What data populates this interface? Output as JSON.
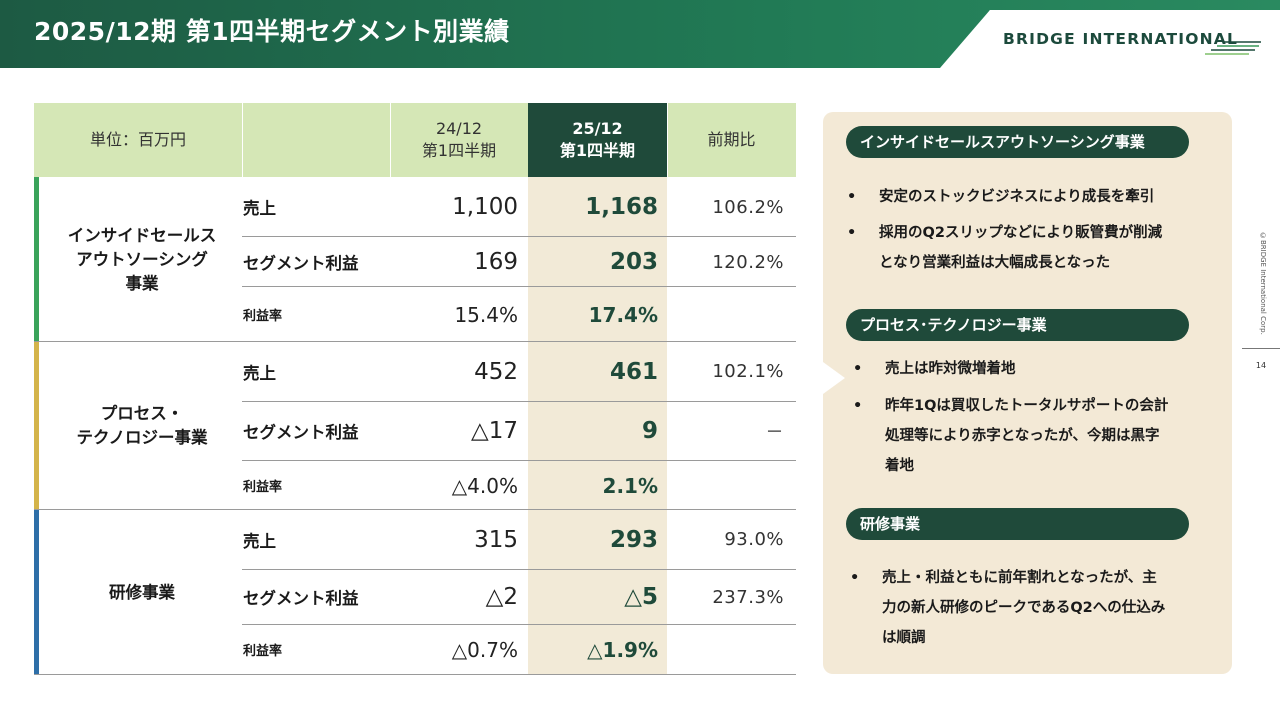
{
  "header": {
    "title": "2025/12期 第1四半期セグメント別業績",
    "logo_text": "BRIDGE INTERNATIONAL"
  },
  "colors": {
    "header_green": "#1f6b4e",
    "dark_green": "#1f4a3a",
    "header_row_bg": "#d5e7b6",
    "highlight_col_bg": "#f2ead7",
    "panel_bg": "#f3e9d6",
    "segment_insight": "#3aa35a",
    "segment_process": "#d4b44a",
    "segment_training": "#2e6fa8"
  },
  "table": {
    "unit_label": "単位：百万円",
    "col_prev": {
      "line1": "24/12",
      "line2": "第1四半期"
    },
    "col_curr": {
      "line1": "25/12",
      "line2": "第1四半期"
    },
    "col_compare": "前期比",
    "segments": [
      {
        "name_lines": [
          "インサイドセールス",
          "アウトソーシング",
          "事業"
        ],
        "rows": [
          {
            "label": "売上",
            "prev": "1,100",
            "curr": "1,168",
            "compare": "106.2%"
          },
          {
            "label": "セグメント利益",
            "prev": "169",
            "curr": "203",
            "compare": "120.2%"
          },
          {
            "label": "利益率",
            "prev": "15.4%",
            "curr": "17.4%",
            "compare": ""
          }
        ]
      },
      {
        "name_lines": [
          "プロセス・",
          "テクノロジー事業"
        ],
        "rows": [
          {
            "label": "売上",
            "prev": "452",
            "curr": "461",
            "compare": "102.1%"
          },
          {
            "label": "セグメント利益",
            "prev": "△17",
            "curr": "9",
            "compare": "－"
          },
          {
            "label": "利益率",
            "prev": "△4.0%",
            "curr": "2.1%",
            "compare": ""
          }
        ]
      },
      {
        "name_lines": [
          "研修事業"
        ],
        "rows": [
          {
            "label": "売上",
            "prev": "315",
            "curr": "293",
            "compare": "93.0%"
          },
          {
            "label": "セグメント利益",
            "prev": "△2",
            "curr": "△5",
            "compare": "237.3%"
          },
          {
            "label": "利益率",
            "prev": "△0.7%",
            "curr": "△1.9%",
            "compare": ""
          }
        ]
      }
    ]
  },
  "panel": {
    "sections": [
      {
        "title": "インサイドセールスアウトソーシング事業",
        "bullets": [
          [
            "安定のストックビジネスにより成長を牽引"
          ],
          [
            "採用のQ2スリップなどにより販管費が削減",
            "となり営業利益は大幅成長となった"
          ]
        ]
      },
      {
        "title": "プロセス･テクノロジー事業",
        "bullets": [
          [
            "売上は昨対微増着地"
          ],
          [
            "昨年1Qは買収したトータルサポートの会計",
            "処理等により赤字となったが、今期は黒字",
            "着地"
          ]
        ]
      },
      {
        "title": "研修事業",
        "bullets": [
          [
            "売上・利益ともに前年割れとなったが、主",
            "力の新人研修のピークであるQ2への仕込み",
            "は順調"
          ]
        ]
      }
    ],
    "bullet_char": "•"
  },
  "side": {
    "copyright": "©BRIDGE International Corp.",
    "page_number": "14"
  }
}
